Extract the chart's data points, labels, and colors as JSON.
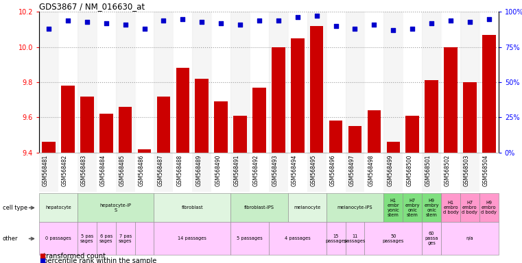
{
  "title": "GDS3867 / NM_016630_at",
  "samples": [
    "GSM568481",
    "GSM568482",
    "GSM568483",
    "GSM568484",
    "GSM568485",
    "GSM568486",
    "GSM568487",
    "GSM568488",
    "GSM568489",
    "GSM568490",
    "GSM568491",
    "GSM568492",
    "GSM568493",
    "GSM568494",
    "GSM568495",
    "GSM568496",
    "GSM568497",
    "GSM568498",
    "GSM568499",
    "GSM568500",
    "GSM568501",
    "GSM568502",
    "GSM568503",
    "GSM568504"
  ],
  "bar_values": [
    9.46,
    9.78,
    9.72,
    9.62,
    9.66,
    9.42,
    9.72,
    9.88,
    9.82,
    9.69,
    9.61,
    9.77,
    10.0,
    10.05,
    10.12,
    9.58,
    9.55,
    9.64,
    9.46,
    9.61,
    9.81,
    10.0,
    9.8,
    10.07
  ],
  "percentile_values": [
    88,
    94,
    93,
    92,
    91,
    88,
    94,
    95,
    93,
    92,
    91,
    94,
    94,
    96,
    97,
    90,
    88,
    91,
    87,
    88,
    92,
    94,
    93,
    95
  ],
  "ylim_left": [
    9.4,
    10.2
  ],
  "ylim_right": [
    0,
    100
  ],
  "yticks_left": [
    9.4,
    9.6,
    9.8,
    10.0,
    10.2
  ],
  "yticks_right": [
    0,
    25,
    50,
    75,
    100
  ],
  "ytick_labels_right": [
    "0%",
    "25%",
    "50%",
    "75%",
    "100%"
  ],
  "bar_color": "#cc0000",
  "dot_color": "#0000cc",
  "cell_type_groups": [
    {
      "label": "hepatocyte",
      "start": 0,
      "end": 2,
      "color": "#e0f5e0"
    },
    {
      "label": "hepatocyte-iP\nS",
      "start": 2,
      "end": 6,
      "color": "#c8eec8"
    },
    {
      "label": "fibroblast",
      "start": 6,
      "end": 10,
      "color": "#e0f5e0"
    },
    {
      "label": "fibroblast-IPS",
      "start": 10,
      "end": 13,
      "color": "#c8eec8"
    },
    {
      "label": "melanocyte",
      "start": 13,
      "end": 15,
      "color": "#e0f5e0"
    },
    {
      "label": "melanocyte-IPS",
      "start": 15,
      "end": 18,
      "color": "#c8eec8"
    },
    {
      "label": "H1\nembr\nyonic\nstem",
      "start": 18,
      "end": 19,
      "color": "#80e080"
    },
    {
      "label": "H7\nembry\nonic\nstem",
      "start": 19,
      "end": 20,
      "color": "#80e080"
    },
    {
      "label": "H9\nembry\nonic\nstem",
      "start": 20,
      "end": 21,
      "color": "#80e080"
    },
    {
      "label": "H1\nembro\nd body",
      "start": 21,
      "end": 22,
      "color": "#ff99cc"
    },
    {
      "label": "H7\nembro\nd body",
      "start": 22,
      "end": 23,
      "color": "#ff99cc"
    },
    {
      "label": "H9\nembro\nd body",
      "start": 23,
      "end": 24,
      "color": "#ff99cc"
    }
  ],
  "other_groups": [
    {
      "label": "0 passages",
      "start": 0,
      "end": 2,
      "color": "#ffccff"
    },
    {
      "label": "5 pas\nsages",
      "start": 2,
      "end": 3,
      "color": "#ffccff"
    },
    {
      "label": "6 pas\nsages",
      "start": 3,
      "end": 4,
      "color": "#ffccff"
    },
    {
      "label": "7 pas\nsages",
      "start": 4,
      "end": 5,
      "color": "#ffccff"
    },
    {
      "label": "",
      "start": 5,
      "end": 6,
      "color": "#ffccff"
    },
    {
      "label": "14 passages",
      "start": 6,
      "end": 10,
      "color": "#ffccff"
    },
    {
      "label": "5 passages",
      "start": 10,
      "end": 12,
      "color": "#ffccff"
    },
    {
      "label": "4 passages",
      "start": 12,
      "end": 15,
      "color": "#ffccff"
    },
    {
      "label": "15\npassages",
      "start": 15,
      "end": 16,
      "color": "#ffccff"
    },
    {
      "label": "11\npassages",
      "start": 16,
      "end": 17,
      "color": "#ffccff"
    },
    {
      "label": "50\npassages",
      "start": 17,
      "end": 20,
      "color": "#ffccff"
    },
    {
      "label": "60\npassa\nges",
      "start": 20,
      "end": 21,
      "color": "#ffccff"
    },
    {
      "label": "n/a",
      "start": 21,
      "end": 24,
      "color": "#ffccff"
    }
  ],
  "grid_color": "#999999",
  "col_bg_even": "#e8e8e8",
  "col_bg_odd": "#ffffff"
}
